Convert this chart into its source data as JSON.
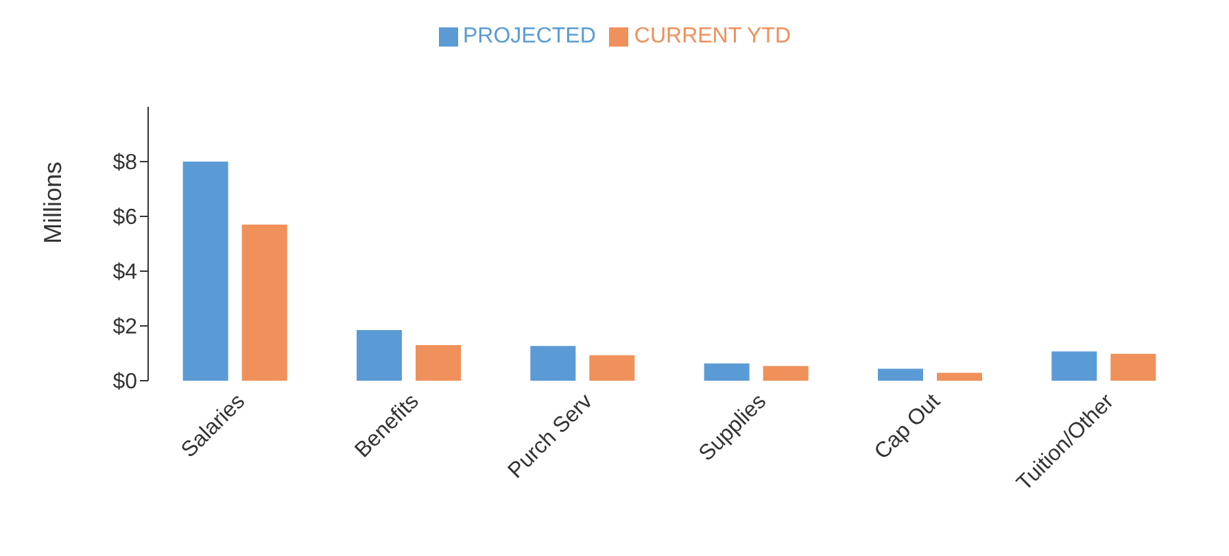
{
  "chart_data": {
    "type": "bar",
    "ylabel": "Millions",
    "categories": [
      "Salaries",
      "Benefits",
      "Purch Serv",
      "Supplies",
      "Cap Out",
      "Tuition/Other"
    ],
    "series": [
      {
        "name": "PROJECTED",
        "color": "#5b9bd5",
        "values": [
          8.0,
          1.85,
          1.27,
          0.63,
          0.44,
          1.07
        ]
      },
      {
        "name": "CURRENT YTD",
        "color": "#f0905a",
        "values": [
          5.7,
          1.3,
          0.93,
          0.54,
          0.29,
          0.98
        ]
      }
    ],
    "ylim": [
      0,
      10
    ],
    "yticks": [
      {
        "value": 0,
        "label": "$0"
      },
      {
        "value": 2,
        "label": "$2"
      },
      {
        "value": 4,
        "label": "$4"
      },
      {
        "value": 6,
        "label": "$6"
      },
      {
        "value": 8,
        "label": "$8"
      }
    ],
    "grid": false,
    "legend": "top"
  }
}
